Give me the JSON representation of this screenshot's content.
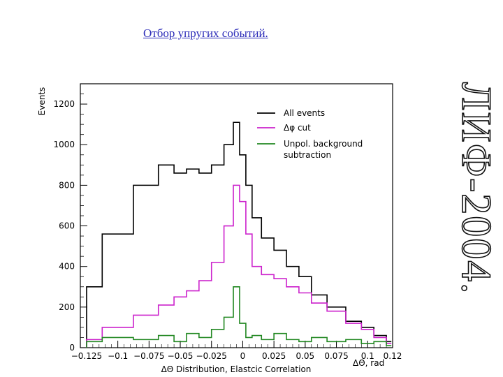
{
  "slide": {
    "title": "Отбор упругих событий.",
    "side_banner": "ЛИФ-2004."
  },
  "colors": {
    "title": "#2b2bb8",
    "all_events": "#000000",
    "dphi_cut": "#cc22cc",
    "unpol_bg": "#228822"
  },
  "chart_data": {
    "type": "line",
    "title": "",
    "xlabel": "ΔΘ Distribution, Elastcic Correlation",
    "xlabel_units": "ΔΘ, rad",
    "ylabel": "Events",
    "xlim": [
      -0.13,
      0.12
    ],
    "ylim": [
      0,
      1300
    ],
    "x_ticks": [
      {
        "v": -0.125,
        "label": "−0.125"
      },
      {
        "v": -0.1,
        "label": "−0.1"
      },
      {
        "v": -0.075,
        "label": "−0.075"
      },
      {
        "v": -0.05,
        "label": "−0.05"
      },
      {
        "v": -0.025,
        "label": "−0.025"
      },
      {
        "v": 0,
        "label": "0"
      },
      {
        "v": 0.025,
        "label": "0.025"
      },
      {
        "v": 0.05,
        "label": "0.05"
      },
      {
        "v": 0.075,
        "label": "0.075"
      },
      {
        "v": 0.1,
        "label": "0.1"
      },
      {
        "v": 0.12,
        "label": "0.12"
      }
    ],
    "y_ticks": [
      0,
      200,
      400,
      600,
      800,
      1000,
      1200
    ],
    "legend_position": "top-right",
    "grid": false,
    "x": [
      -0.125,
      -0.1,
      -0.075,
      -0.06,
      -0.05,
      -0.04,
      -0.03,
      -0.02,
      -0.01,
      -0.005,
      0,
      0.005,
      0.01,
      0.02,
      0.03,
      0.04,
      0.05,
      0.06,
      0.075,
      0.09,
      0.1,
      0.11,
      0.12
    ],
    "series": [
      {
        "name": "All events",
        "values": [
          300,
          560,
          800,
          900,
          860,
          880,
          860,
          900,
          1000,
          1110,
          950,
          800,
          640,
          540,
          480,
          400,
          350,
          260,
          200,
          130,
          100,
          60,
          30
        ]
      },
      {
        "name": "Δφ cut",
        "values": [
          40,
          100,
          160,
          210,
          250,
          280,
          330,
          420,
          600,
          800,
          720,
          560,
          400,
          360,
          340,
          300,
          270,
          220,
          180,
          120,
          90,
          50,
          20
        ]
      },
      {
        "name": "Unpol. background subtraction",
        "values": [
          30,
          50,
          40,
          60,
          30,
          70,
          50,
          90,
          150,
          300,
          120,
          50,
          60,
          40,
          70,
          40,
          30,
          50,
          30,
          40,
          20,
          30,
          10
        ]
      }
    ]
  }
}
